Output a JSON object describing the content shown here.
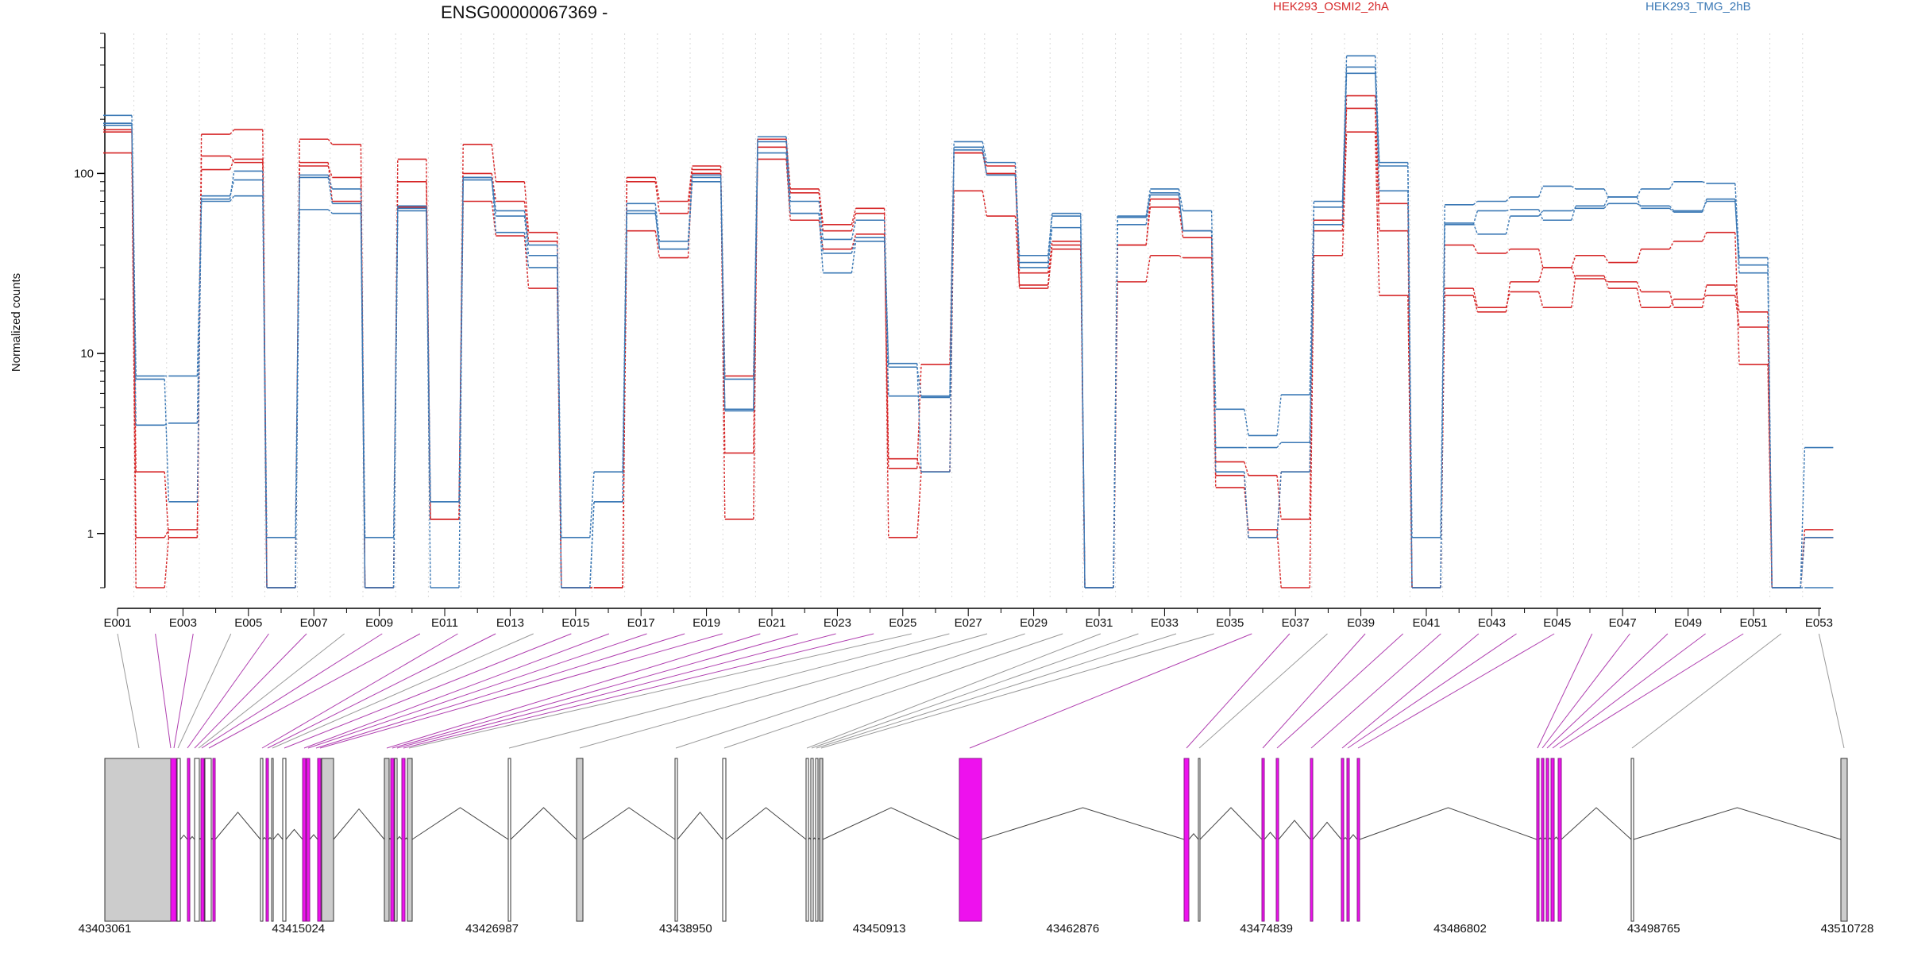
{
  "chart_data": {
    "type": "line",
    "title": "ENSG00000067369 -",
    "ylabel": "Normalized counts",
    "yscale": "log",
    "ylim": [
      0.5,
      600
    ],
    "yticks": [
      "1",
      "10",
      "100"
    ],
    "ytick_values": [
      1,
      10,
      100
    ],
    "x": [
      "E001",
      "E002",
      "E003",
      "E004",
      "E005",
      "E006",
      "E007",
      "E008",
      "E009",
      "E010",
      "E011",
      "E012",
      "E013",
      "E014",
      "E015",
      "E016",
      "E017",
      "E018",
      "E019",
      "E020",
      "E021",
      "E022",
      "E023",
      "E024",
      "E025",
      "E026",
      "E027",
      "E028",
      "E029",
      "E030",
      "E031",
      "E032",
      "E033",
      "E034",
      "E035",
      "E036",
      "E037",
      "E038",
      "E039",
      "E040",
      "E041",
      "E042",
      "E043",
      "E044",
      "E045",
      "E046",
      "E047",
      "E048",
      "E049",
      "E050",
      "E051",
      "E052",
      "E053"
    ],
    "x_tick_labels": [
      "E001",
      "E003",
      "E005",
      "E007",
      "E009",
      "E011",
      "E013",
      "E015",
      "E017",
      "E019",
      "E021",
      "E023",
      "E025",
      "E027",
      "E029",
      "E031",
      "E033",
      "E035",
      "E037",
      "E039",
      "E041",
      "E043",
      "E045",
      "E047",
      "E049",
      "E051",
      "E053"
    ],
    "legend": [
      "HEK293_OSMI2_2hA",
      "HEK293_TMG_2hB"
    ],
    "colors": {
      "HEK293_OSMI2_2hA": "#d62728",
      "HEK293_TMG_2hB": "#3a78b5"
    },
    "series": [
      {
        "group": "HEK293_OSMI2_2hA",
        "values": [
          170,
          2.2,
          0.95,
          165,
          175,
          0.5,
          155,
          145,
          0.5,
          120,
          1.2,
          145,
          90,
          47,
          0.5,
          0.5,
          95,
          70,
          110,
          1.2,
          155,
          82,
          52,
          64,
          0.95,
          2.2,
          80,
          58,
          24,
          42,
          0.5,
          25,
          35,
          34,
          1.8,
          1.05,
          0.5,
          35,
          170,
          21,
          0.5,
          21,
          17,
          25,
          30,
          35,
          32,
          38,
          42,
          47,
          8.7,
          0.5,
          1.05
        ]
      },
      {
        "group": "HEK293_OSMI2_2hA",
        "values": [
          175,
          0.95,
          1.05,
          105,
          120,
          0.5,
          110,
          95,
          0.5,
          90,
          1.2,
          100,
          70,
          42,
          0.5,
          0.5,
          90,
          60,
          105,
          2.8,
          140,
          78,
          48,
          60,
          2.6,
          2.2,
          130,
          100,
          28,
          40,
          0.5,
          40,
          65,
          44,
          2.5,
          2.1,
          1.2,
          48,
          230,
          48,
          0.5,
          23,
          18,
          22,
          18,
          27,
          23,
          18,
          20,
          21,
          14,
          0.5,
          0.95
        ]
      },
      {
        "group": "HEK293_OSMI2_2hA",
        "values": [
          130,
          0.5,
          0.95,
          125,
          115,
          0.5,
          115,
          70,
          0.5,
          65,
          1.2,
          70,
          45,
          23,
          0.5,
          0.5,
          48,
          34,
          100,
          7.5,
          120,
          55,
          38,
          46,
          2.3,
          8.7,
          130,
          110,
          23,
          38,
          0.5,
          40,
          72,
          48,
          2.1,
          0.95,
          2.2,
          55,
          270,
          68,
          0.5,
          40,
          36,
          38,
          30,
          26,
          25,
          22,
          18,
          24,
          17,
          0.5,
          0.95
        ]
      },
      {
        "group": "HEK293_TMG_2hB",
        "values": [
          210,
          7.2,
          1.5,
          75,
          92,
          0.95,
          98,
          82,
          0.95,
          66,
          1.5,
          95,
          62,
          40,
          0.95,
          2.2,
          68,
          42,
          95,
          7.2,
          160,
          70,
          43,
          55,
          8.4,
          5.8,
          150,
          115,
          35,
          60,
          0.5,
          58,
          82,
          62,
          4.9,
          3.5,
          5.9,
          70,
          450,
          115,
          0.95,
          67,
          70,
          74,
          85,
          82,
          74,
          82,
          90,
          88,
          34,
          0.5,
          3.0
        ]
      },
      {
        "group": "HEK293_TMG_2hB",
        "values": [
          185,
          4,
          4.1,
          70,
          75,
          0.5,
          63,
          60,
          0.5,
          64,
          0.5,
          95,
          47,
          30,
          0.5,
          1.5,
          62,
          38,
          98,
          4.9,
          150,
          60,
          36,
          44,
          5.8,
          5.7,
          140,
          98,
          32,
          58,
          0.5,
          57,
          76,
          48,
          3.0,
          3.0,
          3.2,
          65,
          390,
          80,
          0.5,
          53,
          46,
          58,
          62,
          64,
          68,
          66,
          62,
          70,
          31,
          0.5,
          0.95
        ]
      },
      {
        "group": "HEK293_TMG_2hB",
        "values": [
          190,
          7.5,
          7.5,
          72,
          103,
          0.5,
          95,
          68,
          0.5,
          62,
          1.5,
          92,
          58,
          35,
          0.5,
          1.5,
          60,
          38,
          90,
          4.8,
          130,
          60,
          28,
          42,
          8.8,
          2.2,
          135,
          98,
          30,
          50,
          0.5,
          52,
          78,
          48,
          2.2,
          0.95,
          2.2,
          52,
          360,
          110,
          0.5,
          52,
          62,
          63,
          55,
          66,
          74,
          64,
          61,
          72,
          28,
          0.5,
          0.5
        ]
      }
    ]
  },
  "gene_model": {
    "start_label": "43403061",
    "coordinate_ticks": [
      "43403061",
      "43415024",
      "43426987",
      "43438950",
      "43450913",
      "43462876",
      "43474839",
      "43486802",
      "43498765",
      "43510728"
    ]
  }
}
